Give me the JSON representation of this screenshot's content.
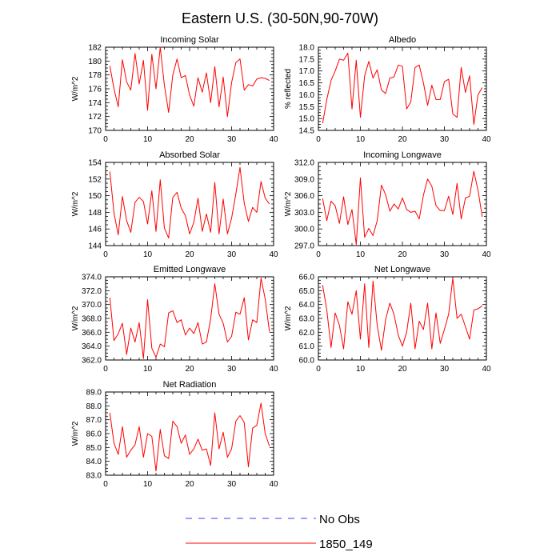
{
  "figure": {
    "title": "Eastern U.S. (30-50N,90-70W)",
    "legend": [
      {
        "label": "No Obs",
        "color": "#3d3dff",
        "dash": true
      },
      {
        "label": "1850_149",
        "color": "#ff0000",
        "dash": false
      }
    ]
  },
  "chart_data": [
    {
      "type": "line",
      "title": "Incoming Solar",
      "ylabel": "W/m^2",
      "xlim": [
        0,
        40
      ],
      "xticks": [
        0,
        10,
        20,
        30,
        40
      ],
      "ylim": [
        170,
        182
      ],
      "yticks": [
        "170",
        "172",
        "174",
        "176",
        "178",
        "180",
        "182"
      ],
      "series": [
        {
          "name": "1850_149",
          "color": "#ff0000",
          "x": [
            1,
            2,
            3,
            4,
            5,
            6,
            7,
            8,
            9,
            10,
            11,
            12,
            13,
            14,
            15,
            16,
            17,
            18,
            19,
            20,
            21,
            22,
            23,
            24,
            25,
            26,
            27,
            28,
            29,
            30,
            31,
            32,
            33,
            34,
            35,
            36,
            37,
            38,
            39
          ],
          "values": [
            179.3,
            176.0,
            173.4,
            180.2,
            177.0,
            175.8,
            181.1,
            176.7,
            180.1,
            172.9,
            181.0,
            176.0,
            182.0,
            176.5,
            172.6,
            178.0,
            180.3,
            177.6,
            177.9,
            175.1,
            173.5,
            177.6,
            175.5,
            178.3,
            174.0,
            179.2,
            173.4,
            177.7,
            172.0,
            176.9,
            179.8,
            180.3,
            175.8,
            176.6,
            176.4,
            177.4,
            177.6,
            177.5,
            177.2
          ]
        }
      ]
    },
    {
      "type": "line",
      "title": "Albedo",
      "ylabel": "% reflected",
      "xlim": [
        0,
        40
      ],
      "xticks": [
        0,
        10,
        20,
        30,
        40
      ],
      "ylim": [
        14.5,
        18.0
      ],
      "yticks": [
        "14.5",
        "15.0",
        "15.5",
        "16.0",
        "16.5",
        "17.0",
        "17.5",
        "18.0"
      ],
      "series": [
        {
          "name": "1850_149",
          "color": "#ff0000",
          "x": [
            1,
            2,
            3,
            4,
            5,
            6,
            7,
            8,
            9,
            10,
            11,
            12,
            13,
            14,
            15,
            16,
            17,
            18,
            19,
            20,
            21,
            22,
            23,
            24,
            25,
            26,
            27,
            28,
            29,
            30,
            31,
            32,
            33,
            34,
            35,
            36,
            37,
            38,
            39
          ],
          "values": [
            14.8,
            15.8,
            16.6,
            17.0,
            17.5,
            17.45,
            17.75,
            15.4,
            17.45,
            15.05,
            16.8,
            17.4,
            16.7,
            17.05,
            16.2,
            16.05,
            16.7,
            16.75,
            17.25,
            17.2,
            15.4,
            15.7,
            17.15,
            17.25,
            16.5,
            15.55,
            16.4,
            15.8,
            15.8,
            16.55,
            16.65,
            15.2,
            15.05,
            17.15,
            16.1,
            16.8,
            14.75,
            16.0,
            16.3
          ]
        }
      ]
    },
    {
      "type": "line",
      "title": "Absorbed Solar",
      "ylabel": "W/m^2",
      "xlim": [
        0,
        40
      ],
      "xticks": [
        0,
        10,
        20,
        30,
        40
      ],
      "ylim": [
        144,
        154
      ],
      "yticks": [
        "144",
        "146",
        "148",
        "150",
        "152",
        "154"
      ],
      "series": [
        {
          "name": "1850_149",
          "color": "#ff0000",
          "x": [
            1,
            2,
            3,
            4,
            5,
            6,
            7,
            8,
            9,
            10,
            11,
            12,
            13,
            14,
            15,
            16,
            17,
            18,
            19,
            20,
            21,
            22,
            23,
            24,
            25,
            26,
            27,
            28,
            29,
            30,
            31,
            32,
            33,
            34,
            35,
            36,
            37,
            38,
            39
          ],
          "values": [
            152.9,
            147.9,
            145.3,
            149.9,
            147.0,
            145.6,
            149.2,
            149.8,
            149.3,
            146.6,
            150.6,
            145.7,
            151.9,
            146.1,
            144.9,
            149.8,
            150.4,
            148.5,
            147.6,
            145.4,
            146.8,
            149.7,
            145.7,
            147.8,
            145.6,
            151.6,
            145.4,
            149.6,
            145.4,
            147.3,
            150.2,
            153.4,
            149.1,
            146.9,
            148.6,
            148.0,
            151.7,
            149.7,
            149.0
          ]
        }
      ]
    },
    {
      "type": "line",
      "title": "Incoming Longwave",
      "ylabel": "W/m^2",
      "xlim": [
        0,
        40
      ],
      "xticks": [
        0,
        10,
        20,
        30,
        40
      ],
      "ylim": [
        297.0,
        312.0
      ],
      "yticks": [
        "297.0",
        "300.0",
        "303.0",
        "306.0",
        "309.0",
        "312.0"
      ],
      "series": [
        {
          "name": "1850_149",
          "color": "#ff0000",
          "x": [
            1,
            2,
            3,
            4,
            5,
            6,
            7,
            8,
            9,
            10,
            11,
            12,
            13,
            14,
            15,
            16,
            17,
            18,
            19,
            20,
            21,
            22,
            23,
            24,
            25,
            26,
            27,
            28,
            29,
            30,
            31,
            32,
            33,
            34,
            35,
            36,
            37,
            38,
            39
          ],
          "values": [
            305.5,
            301.5,
            305.0,
            304.2,
            301.0,
            305.8,
            300.8,
            303.5,
            297.2,
            309.2,
            298.5,
            300.1,
            298.8,
            301.5,
            307.9,
            306.2,
            303.2,
            304.5,
            303.6,
            305.6,
            303.5,
            303.0,
            303.2,
            301.8,
            306.1,
            309.0,
            307.7,
            304.2,
            303.3,
            303.3,
            305.9,
            302.6,
            308.2,
            301.8,
            305.6,
            305.9,
            310.4,
            307.0,
            302.2
          ]
        }
      ]
    },
    {
      "type": "line",
      "title": "Emitted Longwave",
      "ylabel": "W/m^2",
      "xlim": [
        0,
        40
      ],
      "xticks": [
        0,
        10,
        20,
        30,
        40
      ],
      "ylim": [
        362.0,
        374.0
      ],
      "yticks": [
        "362.0",
        "364.0",
        "366.0",
        "368.0",
        "370.0",
        "372.0",
        "374.0"
      ],
      "series": [
        {
          "name": "1850_149",
          "color": "#ff0000",
          "x": [
            1,
            2,
            3,
            4,
            5,
            6,
            7,
            8,
            9,
            10,
            11,
            12,
            13,
            14,
            15,
            16,
            17,
            18,
            19,
            20,
            21,
            22,
            23,
            24,
            25,
            26,
            27,
            28,
            29,
            30,
            31,
            32,
            33,
            34,
            35,
            36,
            37,
            38,
            39
          ],
          "values": [
            371.0,
            364.8,
            365.8,
            367.3,
            362.8,
            366.6,
            364.6,
            367.4,
            362.2,
            370.7,
            363.7,
            362.4,
            364.3,
            363.9,
            368.8,
            369.1,
            367.4,
            367.8,
            365.6,
            366.6,
            365.8,
            367.4,
            364.3,
            364.6,
            367.9,
            373.0,
            368.6,
            367.3,
            364.6,
            365.4,
            368.9,
            368.6,
            371.0,
            364.9,
            367.8,
            367.4,
            373.8,
            370.8,
            366.1
          ]
        }
      ]
    },
    {
      "type": "line",
      "title": "Net Longwave",
      "ylabel": "W/m^2",
      "xlim": [
        0,
        40
      ],
      "xticks": [
        0,
        10,
        20,
        30,
        40
      ],
      "ylim": [
        60.0,
        66.0
      ],
      "yticks": [
        "60.0",
        "61.0",
        "62.0",
        "63.0",
        "64.0",
        "65.0",
        "66.0"
      ],
      "series": [
        {
          "name": "1850_149",
          "color": "#ff0000",
          "x": [
            1,
            2,
            3,
            4,
            5,
            6,
            7,
            8,
            9,
            10,
            11,
            12,
            13,
            14,
            15,
            16,
            17,
            18,
            19,
            20,
            21,
            22,
            23,
            24,
            25,
            26,
            27,
            28,
            29,
            30,
            31,
            32,
            33,
            34,
            35,
            36,
            37,
            38,
            39
          ],
          "values": [
            65.4,
            63.6,
            60.9,
            63.4,
            62.5,
            60.8,
            64.2,
            63.3,
            65.0,
            61.5,
            65.5,
            60.9,
            65.7,
            62.5,
            60.7,
            62.9,
            64.1,
            63.3,
            61.8,
            61.0,
            62.0,
            64.1,
            60.8,
            62.8,
            62.2,
            64.1,
            60.8,
            63.4,
            61.2,
            62.2,
            63.3,
            65.9,
            63.0,
            63.3,
            62.4,
            61.5,
            63.6,
            63.7,
            63.9
          ]
        }
      ]
    },
    {
      "type": "line",
      "title": "Net Radiation",
      "ylabel": "W/m^2",
      "xlim": [
        0,
        40
      ],
      "xticks": [
        0,
        10,
        20,
        30,
        40
      ],
      "ylim": [
        83.0,
        89.0
      ],
      "yticks": [
        "83.0",
        "84.0",
        "85.0",
        "86.0",
        "87.0",
        "88.0",
        "89.0"
      ],
      "series": [
        {
          "name": "1850_149",
          "color": "#ff0000",
          "x": [
            1,
            2,
            3,
            4,
            5,
            6,
            7,
            8,
            9,
            10,
            11,
            12,
            13,
            14,
            15,
            16,
            17,
            18,
            19,
            20,
            21,
            22,
            23,
            24,
            25,
            26,
            27,
            28,
            29,
            30,
            31,
            32,
            33,
            34,
            35,
            36,
            37,
            38,
            39
          ],
          "values": [
            87.5,
            85.3,
            84.5,
            86.5,
            84.3,
            84.8,
            85.2,
            86.5,
            84.3,
            86.0,
            85.8,
            83.3,
            86.3,
            84.4,
            84.2,
            86.9,
            86.5,
            85.3,
            85.9,
            84.5,
            84.9,
            85.6,
            84.8,
            84.9,
            83.7,
            87.5,
            84.9,
            86.1,
            84.3,
            84.9,
            86.9,
            87.3,
            86.8,
            83.6,
            86.4,
            86.6,
            88.2,
            86.0,
            85.1
          ]
        }
      ]
    }
  ]
}
